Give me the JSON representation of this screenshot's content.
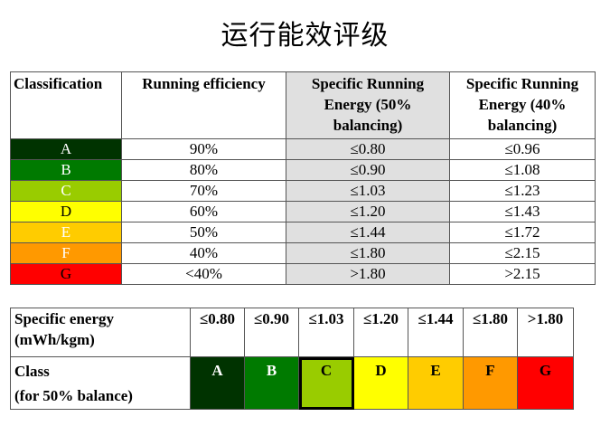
{
  "title": "运行能效评级",
  "table1": {
    "headers": [
      "Classification",
      "Running efficiency",
      "Specific Running Energy (50% balancing)",
      "Specific Running Energy (40% balancing)"
    ],
    "rows": [
      {
        "class": "A",
        "efficiency": "90%",
        "e50": "≤0.80",
        "e40": "≤0.96",
        "color": "#003300",
        "text": "#ffffff"
      },
      {
        "class": "B",
        "efficiency": "80%",
        "e50": "≤0.90",
        "e40": "≤1.08",
        "color": "#007a00",
        "text": "#ffffff"
      },
      {
        "class": "C",
        "efficiency": "70%",
        "e50": "≤1.03",
        "e40": "≤1.23",
        "color": "#99cc00",
        "text": "#ffffff"
      },
      {
        "class": "D",
        "efficiency": "60%",
        "e50": "≤1.20",
        "e40": "≤1.43",
        "color": "#ffff00",
        "text": "#000000"
      },
      {
        "class": "E",
        "efficiency": "50%",
        "e50": "≤1.44",
        "e40": "≤1.72",
        "color": "#ffcc00",
        "text": "#ffffff"
      },
      {
        "class": "F",
        "efficiency": "40%",
        "e50": "≤1.80",
        "e40": "≤2.15",
        "color": "#ff9900",
        "text": "#ffffff"
      },
      {
        "class": "G",
        "efficiency": "<40%",
        "e50": ">1.80",
        "e40": ">2.15",
        "color": "#ff0000",
        "text": "#000000"
      }
    ]
  },
  "table2": {
    "row1_label_line1": "Specific energy",
    "row1_label_line2": "(mWh/kgm)",
    "row2_label_line1": "Class",
    "row2_label_line2": "(for 50% balance)",
    "thresholds": [
      "≤0.80",
      "≤0.90",
      "≤1.03",
      "≤1.20",
      "≤1.44",
      "≤1.80",
      ">1.80"
    ],
    "classes": [
      {
        "label": "A",
        "color": "#003300",
        "text": "#ffffff"
      },
      {
        "label": "B",
        "color": "#007a00",
        "text": "#ffffff"
      },
      {
        "label": "C",
        "color": "#99cc00",
        "text": "#000000",
        "selected": true
      },
      {
        "label": "D",
        "color": "#ffff00",
        "text": "#000000"
      },
      {
        "label": "E",
        "color": "#ffcc00",
        "text": "#000000"
      },
      {
        "label": "F",
        "color": "#ff9900",
        "text": "#000000"
      },
      {
        "label": "G",
        "color": "#ff0000",
        "text": "#000000"
      }
    ]
  }
}
